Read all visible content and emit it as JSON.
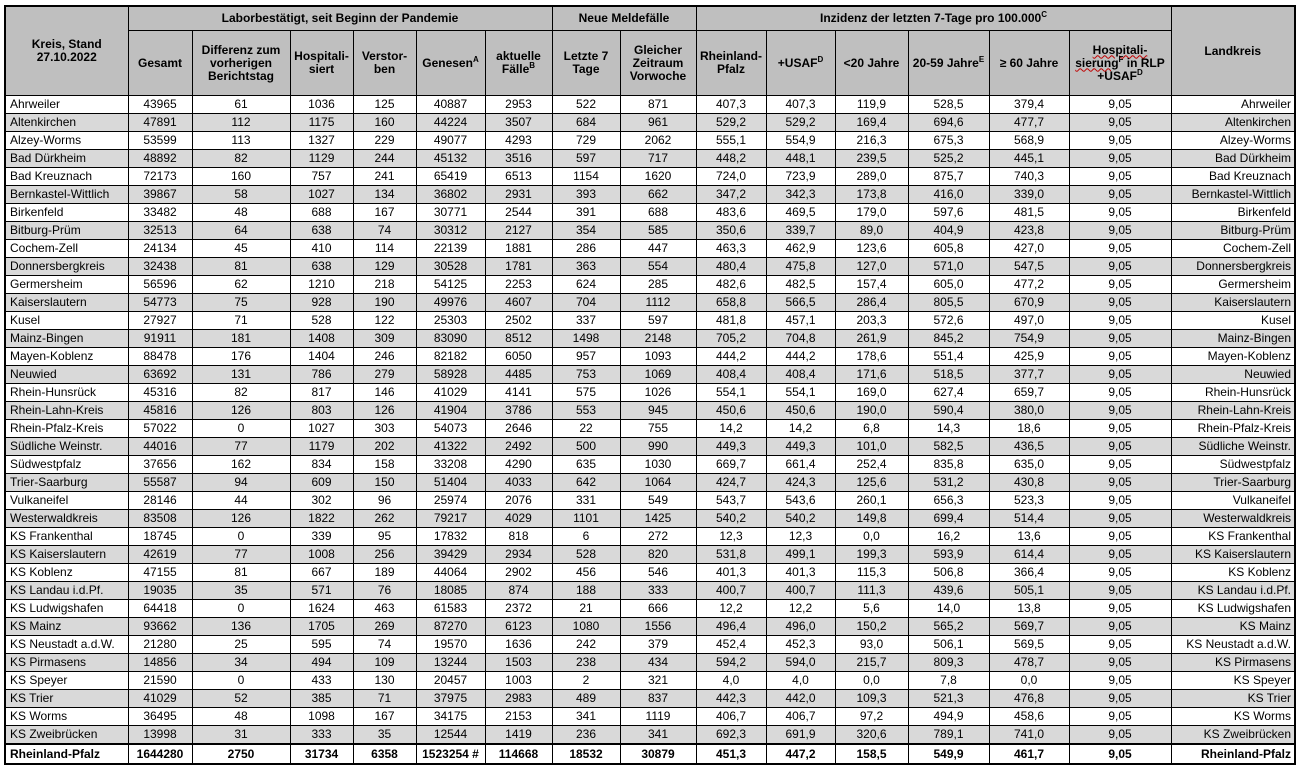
{
  "header": {
    "kreis_label": "Kreis, Stand",
    "stand_date": "27.10.2022",
    "group_labor": "Laborbestätigt, seit Beginn der Pandemie",
    "group_neue": "Neue Meldefälle",
    "group_inzidenz": "Inzidenz der letzten 7-Tage pro 100.000",
    "group_inzidenz_sup": "C",
    "landkreis": "Landkreis",
    "cols": {
      "gesamt": "Gesamt",
      "differenz": "Differenz zum vorherigen Berichtstag",
      "hospitalisiert": "Hospitali-siert",
      "verstorben": "Verstor-ben",
      "genesen": "Genesen",
      "genesen_sup": "A",
      "aktuelle": "aktuelle Fälle",
      "aktuelle_sup": "B",
      "letzte7": "Letzte 7 Tage",
      "vorwoche": "Gleicher Zeitraum Vorwoche",
      "rlp": "Rheinland-Pfalz",
      "usaf": "+USAF",
      "usaf_sup": "D",
      "u20": "<20 Jahre",
      "j2059": "20-59 Jahre",
      "j2059_sup": "E",
      "ue60": "≥ 60 Jahre",
      "hosp_a": "Hospitali-",
      "hosp_b": "sierung",
      "hosp_sup": "F",
      "hosp_c": " in RLP",
      "hosp_d": "+USAF",
      "hosp_d_sup": "D"
    }
  },
  "rows": [
    [
      "Ahrweiler",
      "43965",
      "61",
      "1036",
      "125",
      "40887",
      "2953",
      "522",
      "871",
      "407,3",
      "407,3",
      "119,9",
      "528,5",
      "379,4",
      "9,05",
      "Ahrweiler"
    ],
    [
      "Altenkirchen",
      "47891",
      "112",
      "1175",
      "160",
      "44224",
      "3507",
      "684",
      "961",
      "529,2",
      "529,2",
      "169,4",
      "694,6",
      "477,7",
      "9,05",
      "Altenkirchen"
    ],
    [
      "Alzey-Worms",
      "53599",
      "113",
      "1327",
      "229",
      "49077",
      "4293",
      "729",
      "2062",
      "555,1",
      "554,9",
      "216,3",
      "675,3",
      "568,9",
      "9,05",
      "Alzey-Worms"
    ],
    [
      "Bad Dürkheim",
      "48892",
      "82",
      "1129",
      "244",
      "45132",
      "3516",
      "597",
      "717",
      "448,2",
      "448,1",
      "239,5",
      "525,2",
      "445,1",
      "9,05",
      "Bad Dürkheim"
    ],
    [
      "Bad Kreuznach",
      "72173",
      "160",
      "757",
      "241",
      "65419",
      "6513",
      "1154",
      "1620",
      "724,0",
      "723,9",
      "289,0",
      "875,7",
      "740,3",
      "9,05",
      "Bad Kreuznach"
    ],
    [
      "Bernkastel-Wittlich",
      "39867",
      "58",
      "1027",
      "134",
      "36802",
      "2931",
      "393",
      "662",
      "347,2",
      "342,3",
      "173,8",
      "416,0",
      "339,0",
      "9,05",
      "Bernkastel-Wittlich"
    ],
    [
      "Birkenfeld",
      "33482",
      "48",
      "688",
      "167",
      "30771",
      "2544",
      "391",
      "688",
      "483,6",
      "469,5",
      "179,0",
      "597,6",
      "481,5",
      "9,05",
      "Birkenfeld"
    ],
    [
      "Bitburg-Prüm",
      "32513",
      "64",
      "638",
      "74",
      "30312",
      "2127",
      "354",
      "585",
      "350,6",
      "339,7",
      "89,0",
      "404,9",
      "423,8",
      "9,05",
      "Bitburg-Prüm"
    ],
    [
      "Cochem-Zell",
      "24134",
      "45",
      "410",
      "114",
      "22139",
      "1881",
      "286",
      "447",
      "463,3",
      "462,9",
      "123,6",
      "605,8",
      "427,0",
      "9,05",
      "Cochem-Zell"
    ],
    [
      "Donnersbergkreis",
      "32438",
      "81",
      "638",
      "129",
      "30528",
      "1781",
      "363",
      "554",
      "480,4",
      "475,8",
      "127,0",
      "571,0",
      "547,5",
      "9,05",
      "Donnersbergkreis"
    ],
    [
      "Germersheim",
      "56596",
      "62",
      "1210",
      "218",
      "54125",
      "2253",
      "624",
      "285",
      "482,6",
      "482,5",
      "157,4",
      "605,0",
      "477,2",
      "9,05",
      "Germersheim"
    ],
    [
      "Kaiserslautern",
      "54773",
      "75",
      "928",
      "190",
      "49976",
      "4607",
      "704",
      "1112",
      "658,8",
      "566,5",
      "286,4",
      "805,5",
      "670,9",
      "9,05",
      "Kaiserslautern"
    ],
    [
      "Kusel",
      "27927",
      "71",
      "528",
      "122",
      "25303",
      "2502",
      "337",
      "597",
      "481,8",
      "457,1",
      "203,3",
      "572,6",
      "497,0",
      "9,05",
      "Kusel"
    ],
    [
      "Mainz-Bingen",
      "91911",
      "181",
      "1408",
      "309",
      "83090",
      "8512",
      "1498",
      "2148",
      "705,2",
      "704,8",
      "261,9",
      "845,2",
      "754,9",
      "9,05",
      "Mainz-Bingen"
    ],
    [
      "Mayen-Koblenz",
      "88478",
      "176",
      "1404",
      "246",
      "82182",
      "6050",
      "957",
      "1093",
      "444,2",
      "444,2",
      "178,6",
      "551,4",
      "425,9",
      "9,05",
      "Mayen-Koblenz"
    ],
    [
      "Neuwied",
      "63692",
      "131",
      "786",
      "279",
      "58928",
      "4485",
      "753",
      "1069",
      "408,4",
      "408,4",
      "171,6",
      "518,5",
      "377,7",
      "9,05",
      "Neuwied"
    ],
    [
      "Rhein-Hunsrück",
      "45316",
      "82",
      "817",
      "146",
      "41029",
      "4141",
      "575",
      "1026",
      "554,1",
      "554,1",
      "169,0",
      "627,4",
      "659,7",
      "9,05",
      "Rhein-Hunsrück"
    ],
    [
      "Rhein-Lahn-Kreis",
      "45816",
      "126",
      "803",
      "126",
      "41904",
      "3786",
      "553",
      "945",
      "450,6",
      "450,6",
      "190,0",
      "590,4",
      "380,0",
      "9,05",
      "Rhein-Lahn-Kreis"
    ],
    [
      "Rhein-Pfalz-Kreis",
      "57022",
      "0",
      "1027",
      "303",
      "54073",
      "2646",
      "22",
      "755",
      "14,2",
      "14,2",
      "6,8",
      "14,3",
      "18,6",
      "9,05",
      "Rhein-Pfalz-Kreis"
    ],
    [
      "Südliche Weinstr.",
      "44016",
      "77",
      "1179",
      "202",
      "41322",
      "2492",
      "500",
      "990",
      "449,3",
      "449,3",
      "101,0",
      "582,5",
      "436,5",
      "9,05",
      "Südliche Weinstr."
    ],
    [
      "Südwestpfalz",
      "37656",
      "162",
      "834",
      "158",
      "33208",
      "4290",
      "635",
      "1030",
      "669,7",
      "661,4",
      "252,4",
      "835,8",
      "635,0",
      "9,05",
      "Südwestpfalz"
    ],
    [
      "Trier-Saarburg",
      "55587",
      "94",
      "609",
      "150",
      "51404",
      "4033",
      "642",
      "1064",
      "424,7",
      "424,3",
      "125,6",
      "531,2",
      "430,8",
      "9,05",
      "Trier-Saarburg"
    ],
    [
      "Vulkaneifel",
      "28146",
      "44",
      "302",
      "96",
      "25974",
      "2076",
      "331",
      "549",
      "543,7",
      "543,6",
      "260,1",
      "656,3",
      "523,3",
      "9,05",
      "Vulkaneifel"
    ],
    [
      "Westerwaldkreis",
      "83508",
      "126",
      "1822",
      "262",
      "79217",
      "4029",
      "1101",
      "1425",
      "540,2",
      "540,2",
      "149,8",
      "699,4",
      "514,4",
      "9,05",
      "Westerwaldkreis"
    ],
    [
      "KS Frankenthal",
      "18745",
      "0",
      "339",
      "95",
      "17832",
      "818",
      "6",
      "272",
      "12,3",
      "12,3",
      "0,0",
      "16,2",
      "13,6",
      "9,05",
      "KS Frankenthal"
    ],
    [
      "KS Kaiserslautern",
      "42619",
      "77",
      "1008",
      "256",
      "39429",
      "2934",
      "528",
      "820",
      "531,8",
      "499,1",
      "199,3",
      "593,9",
      "614,4",
      "9,05",
      "KS Kaiserslautern"
    ],
    [
      "KS Koblenz",
      "47155",
      "81",
      "667",
      "189",
      "44064",
      "2902",
      "456",
      "546",
      "401,3",
      "401,3",
      "115,3",
      "506,8",
      "366,4",
      "9,05",
      "KS Koblenz"
    ],
    [
      "KS Landau i.d.Pf.",
      "19035",
      "35",
      "571",
      "76",
      "18085",
      "874",
      "188",
      "333",
      "400,7",
      "400,7",
      "111,3",
      "439,6",
      "505,1",
      "9,05",
      "KS Landau i.d.Pf."
    ],
    [
      "KS Ludwigshafen",
      "64418",
      "0",
      "1624",
      "463",
      "61583",
      "2372",
      "21",
      "666",
      "12,2",
      "12,2",
      "5,6",
      "14,0",
      "13,8",
      "9,05",
      "KS Ludwigshafen"
    ],
    [
      "KS Mainz",
      "93662",
      "136",
      "1705",
      "269",
      "87270",
      "6123",
      "1080",
      "1556",
      "496,4",
      "496,0",
      "150,2",
      "565,2",
      "569,7",
      "9,05",
      "KS Mainz"
    ],
    [
      "KS Neustadt a.d.W.",
      "21280",
      "25",
      "595",
      "74",
      "19570",
      "1636",
      "242",
      "379",
      "452,4",
      "452,3",
      "93,0",
      "506,1",
      "569,5",
      "9,05",
      "KS Neustadt a.d.W."
    ],
    [
      "KS Pirmasens",
      "14856",
      "34",
      "494",
      "109",
      "13244",
      "1503",
      "238",
      "434",
      "594,2",
      "594,0",
      "215,7",
      "809,3",
      "478,7",
      "9,05",
      "KS Pirmasens"
    ],
    [
      "KS Speyer",
      "21590",
      "0",
      "433",
      "130",
      "20457",
      "1003",
      "2",
      "321",
      "4,0",
      "4,0",
      "0,0",
      "7,8",
      "0,0",
      "9,05",
      "KS Speyer"
    ],
    [
      "KS Trier",
      "41029",
      "52",
      "385",
      "71",
      "37975",
      "2983",
      "489",
      "837",
      "442,3",
      "442,0",
      "109,3",
      "521,3",
      "476,8",
      "9,05",
      "KS Trier"
    ],
    [
      "KS Worms",
      "36495",
      "48",
      "1098",
      "167",
      "34175",
      "2153",
      "341",
      "1119",
      "406,7",
      "406,7",
      "97,2",
      "494,9",
      "458,6",
      "9,05",
      "KS Worms"
    ],
    [
      "KS Zweibrücken",
      "13998",
      "31",
      "333",
      "35",
      "12544",
      "1419",
      "236",
      "341",
      "692,3",
      "691,9",
      "320,6",
      "789,1",
      "741,0",
      "9,05",
      "KS Zweibrücken"
    ]
  ],
  "total": [
    "Rheinland-Pfalz",
    "1644280",
    "2750",
    "31734",
    "6358",
    "1523254 #",
    "114668",
    "18532",
    "30879",
    "451,3",
    "447,2",
    "158,5",
    "549,9",
    "461,7",
    "9,05",
    "Rheinland-Pfalz"
  ]
}
